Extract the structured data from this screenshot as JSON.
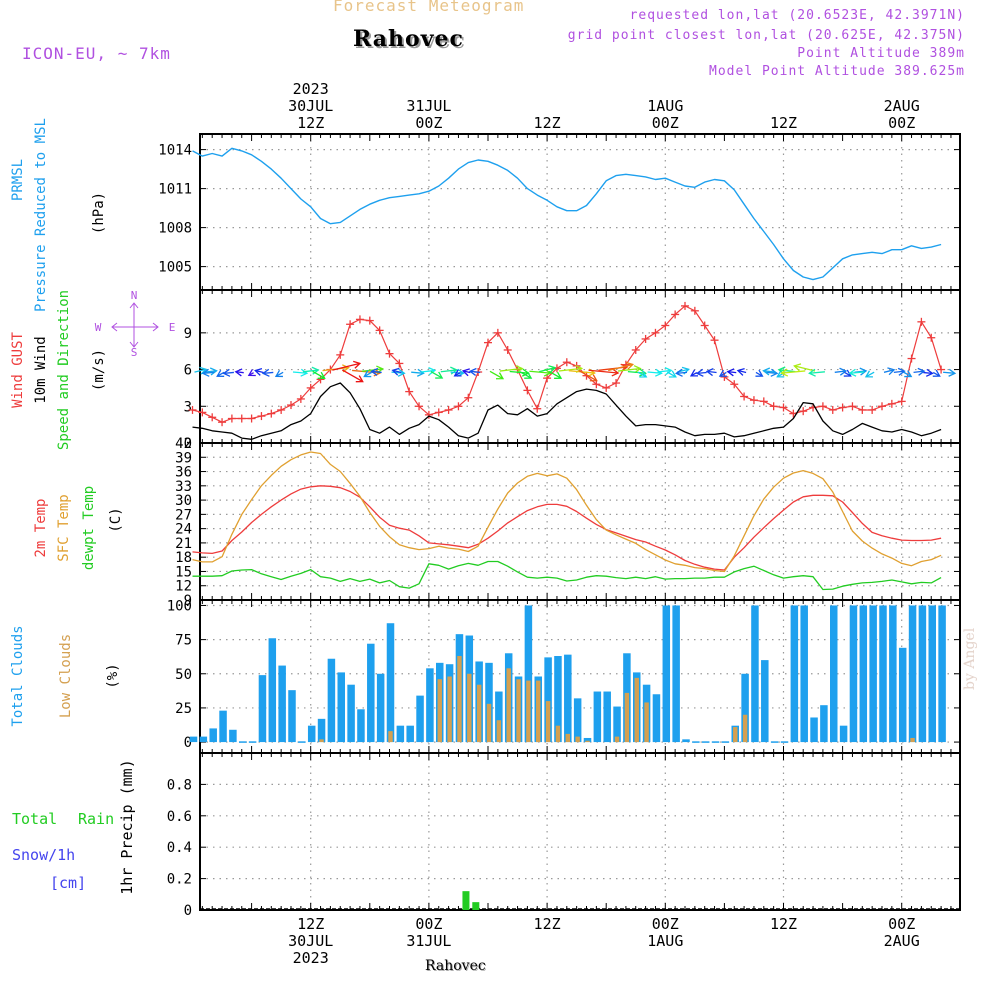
{
  "header": {
    "product": "Forecast Meteogram",
    "location": "Rahovec",
    "model": "ICON-EU, ~ 7km",
    "requested": "requested lon,lat (20.6523E, 42.3971N)",
    "grid_point": "grid point closest lon,lat (20.625E, 42.375N)",
    "point_altitude": "Point Altitude 389m",
    "model_altitude": "Model Point Altitude 389.625m"
  },
  "time_axis": {
    "top_labels": [
      {
        "hour": 12,
        "lines": [
          "2023",
          "30JUL",
          "12Z"
        ]
      },
      {
        "hour": 24,
        "lines": [
          "31JUL",
          "00Z"
        ]
      },
      {
        "hour": 36,
        "lines": [
          "12Z"
        ]
      },
      {
        "hour": 48,
        "lines": [
          "1AUG",
          "00Z"
        ]
      },
      {
        "hour": 60,
        "lines": [
          "12Z"
        ]
      },
      {
        "hour": 72,
        "lines": [
          "2AUG",
          "00Z"
        ]
      }
    ],
    "bottom_labels": [
      {
        "hour": 12,
        "lines": [
          "12Z",
          "30JUL",
          "2023"
        ]
      },
      {
        "hour": 24,
        "lines": [
          "00Z",
          "31JUL"
        ]
      },
      {
        "hour": 36,
        "lines": [
          "12Z"
        ]
      },
      {
        "hour": 48,
        "lines": [
          "00Z",
          "1AUG"
        ]
      },
      {
        "hour": 60,
        "lines": [
          "12Z"
        ]
      },
      {
        "hour": 72,
        "lines": [
          "00Z",
          "2AUG"
        ]
      }
    ]
  },
  "side_labels": {
    "pressure": [
      "PRMSL",
      "Pressure Reduced to MSL",
      "(hPa)"
    ],
    "wind": [
      "Wind GUST",
      "10m Wind",
      "Speed and Direction",
      "(m/s)"
    ],
    "compass": {
      "n": "N",
      "s": "S",
      "w": "W",
      "e": "E"
    },
    "temp": [
      "2m Temp",
      "SFC Temp",
      "dewpt Temp",
      "(C)"
    ],
    "clouds": [
      "Total Clouds",
      "Low Clouds",
      "(%)"
    ],
    "precip_left": [
      "Total",
      "Rain",
      "Snow/1h",
      "[cm]"
    ],
    "precip_axis": "1hr Precip (mm)"
  },
  "colors": {
    "pressure": "#1ea0ee",
    "gust": "#ee3c3c",
    "wind": "#000000",
    "temp2m": "#ee3c3c",
    "sfc": "#e0a030",
    "dewpt": "#22cc22",
    "total_clouds": "#1ea0ee",
    "low_clouds": "#d4a050",
    "rain": "#22cc22",
    "snow": "#4444ee",
    "grid": "#999999",
    "purple": "#b050e0"
  },
  "watermark": "by Angel",
  "bottom_location": "Rahovec",
  "chart_data": [
    {
      "type": "line",
      "name": "pressure",
      "xlabel": "",
      "ylabel": "(hPa)",
      "ylim": [
        1003.2,
        1015.2
      ],
      "yticks": [
        1005,
        1008,
        1011,
        1014
      ],
      "x": [
        0,
        1,
        2,
        3,
        4,
        5,
        6,
        7,
        8,
        9,
        10,
        11,
        12,
        13,
        14,
        15,
        16,
        17,
        18,
        19,
        20,
        21,
        22,
        23,
        24,
        25,
        26,
        27,
        28,
        29,
        30,
        31,
        32,
        33,
        34,
        35,
        36,
        37,
        38,
        39,
        40,
        41,
        42,
        43,
        44,
        45,
        46,
        47,
        48,
        49,
        50,
        51,
        52,
        53,
        54,
        55,
        56,
        57,
        58,
        59,
        60,
        61,
        62,
        63,
        64,
        65,
        66,
        67,
        68,
        69,
        70,
        71,
        72,
        73,
        74,
        75,
        76
      ],
      "series": [
        {
          "name": "PRMSL",
          "values": [
            1013.9,
            1013.5,
            1013.7,
            1013.5,
            1014.1,
            1013.9,
            1013.6,
            1013.1,
            1012.5,
            1011.8,
            1011.0,
            1010.2,
            1009.6,
            1008.7,
            1008.3,
            1008.4,
            1008.9,
            1009.4,
            1009.8,
            1010.1,
            1010.3,
            1010.4,
            1010.5,
            1010.6,
            1010.8,
            1011.2,
            1011.8,
            1012.5,
            1013.0,
            1013.2,
            1013.1,
            1012.8,
            1012.4,
            1011.8,
            1011.0,
            1010.5,
            1010.1,
            1009.6,
            1009.3,
            1009.3,
            1009.7,
            1010.6,
            1011.6,
            1012.0,
            1012.1,
            1012.0,
            1011.9,
            1011.7,
            1011.8,
            1011.5,
            1011.2,
            1011.1,
            1011.5,
            1011.7,
            1011.6,
            1010.9,
            1009.8,
            1008.7,
            1007.7,
            1006.7,
            1005.6,
            1004.7,
            1004.2,
            1004.0,
            1004.2,
            1004.9,
            1005.6,
            1005.9,
            1006.0,
            1006.1,
            1006.0,
            1006.3,
            1006.3,
            1006.6,
            1006.4,
            1006.5,
            1006.7
          ]
        }
      ]
    },
    {
      "type": "line",
      "name": "wind",
      "xlabel": "",
      "ylabel": "(m/s)",
      "ylim": [
        0,
        12.5
      ],
      "yticks": [
        0,
        3,
        6,
        9
      ],
      "x": [
        0,
        1,
        2,
        3,
        4,
        5,
        6,
        7,
        8,
        9,
        10,
        11,
        12,
        13,
        14,
        15,
        16,
        17,
        18,
        19,
        20,
        21,
        22,
        23,
        24,
        25,
        26,
        27,
        28,
        29,
        30,
        31,
        32,
        33,
        34,
        35,
        36,
        37,
        38,
        39,
        40,
        41,
        42,
        43,
        44,
        45,
        46,
        47,
        48,
        49,
        50,
        51,
        52,
        53,
        54,
        55,
        56,
        57,
        58,
        59,
        60,
        61,
        62,
        63,
        64,
        65,
        66,
        67,
        68,
        69,
        70,
        71,
        72,
        73,
        74,
        75,
        76
      ],
      "series": [
        {
          "name": "Wind GUST",
          "marker": "+",
          "values": [
            2.7,
            2.5,
            2.1,
            1.7,
            2.0,
            2.0,
            2.0,
            2.2,
            2.4,
            2.7,
            3.1,
            3.6,
            4.5,
            5.2,
            6.0,
            7.2,
            9.7,
            10.1,
            10.0,
            9.2,
            7.3,
            6.5,
            4.2,
            3.0,
            2.3,
            2.5,
            2.7,
            3.0,
            3.7,
            5.8,
            8.2,
            9.0,
            7.6,
            6.0,
            4.3,
            2.8,
            5.3,
            6.1,
            6.6,
            6.3,
            5.5,
            4.8,
            4.5,
            4.9,
            6.4,
            7.6,
            8.5,
            9.0,
            9.6,
            10.5,
            11.2,
            10.8,
            9.6,
            8.4,
            5.4,
            4.8,
            3.8,
            3.5,
            3.4,
            3.0,
            2.9,
            2.4,
            2.6,
            2.9,
            3.0,
            2.7,
            2.9,
            3.0,
            2.7,
            2.7,
            3.0,
            3.2,
            3.4,
            6.9,
            9.9,
            8.6,
            6.0
          ]
        },
        {
          "name": "10m Wind",
          "values": [
            1.3,
            1.2,
            1.0,
            0.9,
            0.8,
            0.4,
            0.3,
            0.6,
            0.8,
            1.0,
            1.5,
            1.8,
            2.4,
            3.8,
            4.6,
            4.9,
            4.1,
            2.8,
            1.1,
            0.8,
            1.3,
            0.7,
            1.2,
            1.5,
            2.2,
            1.9,
            1.3,
            0.6,
            0.4,
            0.8,
            2.7,
            3.1,
            2.4,
            2.3,
            2.8,
            2.2,
            2.4,
            3.2,
            3.7,
            4.2,
            4.4,
            4.3,
            4.0,
            3.1,
            2.2,
            1.4,
            1.5,
            1.5,
            1.4,
            1.3,
            0.9,
            0.6,
            0.7,
            0.7,
            0.8,
            0.5,
            0.6,
            0.8,
            1.0,
            1.2,
            1.3,
            2.0,
            3.3,
            3.2,
            1.8,
            1.0,
            0.7,
            1.1,
            1.6,
            1.3,
            1.0,
            0.9,
            1.1,
            0.9,
            0.6,
            0.8,
            1.1
          ]
        }
      ],
      "gust_tail": [
        4.8,
        4.1,
        3.4,
        3.8,
        4.2,
        4.0,
        3.7,
        3.9
      ]
    },
    {
      "type": "line",
      "name": "temperature",
      "xlabel": "",
      "ylabel": "(C)",
      "ylim": [
        9,
        42
      ],
      "yticks": [
        9,
        12,
        15,
        18,
        21,
        24,
        27,
        30,
        33,
        36,
        39,
        42
      ],
      "x": [
        0,
        1,
        2,
        3,
        4,
        5,
        6,
        7,
        8,
        9,
        10,
        11,
        12,
        13,
        14,
        15,
        16,
        17,
        18,
        19,
        20,
        21,
        22,
        23,
        24,
        25,
        26,
        27,
        28,
        29,
        30,
        31,
        32,
        33,
        34,
        35,
        36,
        37,
        38,
        39,
        40,
        41,
        42,
        43,
        44,
        45,
        46,
        47,
        48,
        49,
        50,
        51,
        52,
        53,
        54,
        55,
        56,
        57,
        58,
        59,
        60,
        61,
        62,
        63,
        64,
        65,
        66,
        67,
        68,
        69,
        70,
        71,
        72,
        73,
        74,
        75,
        76
      ],
      "series": [
        {
          "name": "2m Temp",
          "values": [
            19.1,
            18.9,
            18.8,
            19.3,
            21.5,
            23.3,
            25.3,
            27.0,
            28.6,
            30.0,
            31.3,
            32.3,
            32.8,
            33.0,
            32.9,
            32.6,
            31.8,
            30.6,
            28.6,
            26.4,
            24.7,
            24.1,
            23.7,
            22.5,
            21.0,
            20.8,
            20.6,
            20.3,
            20.0,
            20.7,
            22.0,
            23.5,
            25.2,
            26.5,
            27.8,
            28.6,
            29.1,
            29.1,
            28.7,
            27.6,
            26.2,
            24.9,
            23.8,
            23.1,
            22.4,
            21.7,
            21.2,
            20.3,
            19.5,
            18.5,
            17.3,
            16.5,
            15.9,
            15.5,
            15.3,
            18.0,
            20.0,
            22.2,
            24.2,
            26.1,
            27.9,
            29.6,
            30.7,
            31.0,
            31.0,
            30.9,
            29.6,
            27.4,
            25.1,
            23.2,
            22.5,
            22.0,
            21.6,
            21.5,
            21.5,
            21.6,
            22.0
          ]
        },
        {
          "name": "SFC Temp",
          "values": [
            17.5,
            17.0,
            17.0,
            18.1,
            22.8,
            27.0,
            30.1,
            33.0,
            35.2,
            37.1,
            38.5,
            39.5,
            40.1,
            39.8,
            37.5,
            36.0,
            33.5,
            30.8,
            27.4,
            24.5,
            22.3,
            20.6,
            20.0,
            19.6,
            19.8,
            20.3,
            19.9,
            19.7,
            19.2,
            20.3,
            24.3,
            28.1,
            31.5,
            33.6,
            35.0,
            35.6,
            35.1,
            35.5,
            34.6,
            32.2,
            28.9,
            25.9,
            23.7,
            22.7,
            21.8,
            20.9,
            19.6,
            18.5,
            17.4,
            16.6,
            16.3,
            15.8,
            15.6,
            15.2,
            15.0,
            18.3,
            22.5,
            26.7,
            30.2,
            32.7,
            34.6,
            35.7,
            36.2,
            35.6,
            34.5,
            31.7,
            27.6,
            23.5,
            21.4,
            19.9,
            18.7,
            17.8,
            16.7,
            16.2,
            17.1,
            17.5,
            18.4
          ]
        },
        {
          "name": "dewpt Temp",
          "values": [
            14.0,
            14.0,
            14.0,
            14.1,
            15.1,
            15.3,
            15.4,
            14.5,
            13.9,
            13.3,
            14.0,
            14.6,
            15.4,
            13.9,
            13.6,
            12.9,
            13.5,
            12.9,
            13.4,
            12.6,
            13.1,
            11.8,
            11.5,
            12.4,
            16.6,
            16.3,
            15.5,
            16.2,
            16.7,
            16.3,
            17.1,
            17.1,
            16.1,
            14.9,
            13.8,
            13.6,
            13.8,
            13.6,
            13.0,
            13.2,
            13.8,
            14.1,
            14.0,
            13.7,
            13.5,
            13.8,
            13.5,
            13.9,
            13.4,
            13.5,
            13.5,
            13.6,
            13.6,
            13.8,
            13.8,
            14.9,
            15.6,
            16.1,
            15.2,
            14.3,
            13.6,
            13.9,
            14.1,
            13.9,
            11.2,
            11.3,
            11.9,
            12.3,
            12.6,
            12.7,
            12.9,
            13.2,
            12.8,
            12.4,
            12.7,
            12.6,
            13.7
          ]
        }
      ]
    },
    {
      "type": "bar",
      "name": "clouds",
      "xlabel": "",
      "ylabel": "(%)",
      "ylim": [
        -8,
        104
      ],
      "yticks": [
        0,
        25,
        50,
        75,
        100
      ],
      "x": [
        0,
        1,
        2,
        3,
        4,
        5,
        6,
        7,
        8,
        9,
        10,
        11,
        12,
        13,
        14,
        15,
        16,
        17,
        18,
        19,
        20,
        21,
        22,
        23,
        24,
        25,
        26,
        27,
        28,
        29,
        30,
        31,
        32,
        33,
        34,
        35,
        36,
        37,
        38,
        39,
        40,
        41,
        42,
        43,
        44,
        45,
        46,
        47,
        48,
        49,
        50,
        51,
        52,
        53,
        54,
        55,
        56,
        57,
        58,
        59,
        60,
        61,
        62,
        63,
        64,
        65,
        66,
        67,
        68,
        69,
        70,
        71,
        72,
        73,
        74,
        75,
        76
      ],
      "series": [
        {
          "name": "Total Clouds",
          "values": [
            4,
            4,
            10,
            23,
            9,
            0,
            0,
            49,
            76,
            56,
            38,
            0,
            12,
            17,
            61,
            51,
            42,
            24,
            72,
            50,
            87,
            12,
            12,
            34,
            54,
            58,
            57,
            79,
            78,
            59,
            58,
            37,
            65,
            48,
            100,
            48,
            62,
            63,
            64,
            32,
            3,
            37,
            37,
            26,
            65,
            51,
            42,
            35,
            100,
            100,
            2,
            0,
            0,
            0,
            0,
            12,
            50,
            100,
            60,
            0,
            0,
            100,
            100,
            18,
            27,
            100,
            12,
            100,
            100,
            100,
            100,
            100,
            69,
            100,
            100,
            100,
            100
          ]
        },
        {
          "name": "Low Clouds",
          "values": [
            0,
            0,
            0,
            0,
            0,
            0,
            0,
            0,
            0,
            0,
            0,
            0,
            0,
            2,
            0,
            0,
            0,
            0,
            0,
            0,
            8,
            0,
            0,
            0,
            0,
            46,
            48,
            63,
            50,
            42,
            28,
            16,
            54,
            46,
            45,
            45,
            30,
            12,
            6,
            4,
            1,
            0,
            0,
            4,
            36,
            47,
            29,
            0,
            0,
            0,
            0,
            0,
            0,
            0,
            0,
            11,
            20,
            0,
            0,
            0,
            0,
            0,
            0,
            0,
            0,
            0,
            0,
            0,
            0,
            0,
            0,
            0,
            0,
            3,
            0,
            0,
            0
          ]
        }
      ]
    },
    {
      "type": "bar",
      "name": "precipitation",
      "xlabel": "",
      "ylabel": "1hr Precip (mm)",
      "ylim": [
        0,
        1.0
      ],
      "yticks": [
        0,
        0.2,
        0.4,
        0.6,
        0.8
      ],
      "x": [
        27,
        28
      ],
      "series": [
        {
          "name": "Total Rain",
          "values": [
            0.12,
            0.05
          ]
        }
      ]
    }
  ]
}
